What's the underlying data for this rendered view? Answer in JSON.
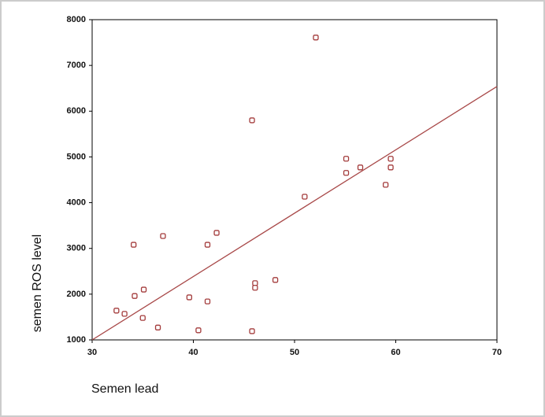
{
  "chart_data": {
    "type": "scatter",
    "xlabel": "Semen lead",
    "ylabel": "semen ROS level",
    "x": [
      32.4,
      33.2,
      34.2,
      35.1,
      35.0,
      36.5,
      34.1,
      37.0,
      39.6,
      40.5,
      41.4,
      41.4,
      42.3,
      45.8,
      45.8,
      46.1,
      46.1,
      48.1,
      51.0,
      52.1,
      55.1,
      55.1,
      56.5,
      59.0,
      59.5,
      59.5
    ],
    "y": [
      1640,
      1570,
      1960,
      2100,
      1480,
      1270,
      3080,
      3270,
      1930,
      1210,
      1840,
      3080,
      3340,
      5800,
      1190,
      2240,
      2140,
      2310,
      4130,
      7610,
      4960,
      4650,
      4770,
      4390,
      4960,
      4770
    ],
    "color": "#a33b3b",
    "fit": {
      "x": [
        30,
        70
      ],
      "y": [
        1000,
        6540
      ],
      "color": "#a84848"
    },
    "xlim": [
      30,
      70
    ],
    "ylim": [
      1000,
      8000
    ],
    "xticks": [
      30,
      40,
      50,
      60,
      70
    ],
    "yticks": [
      1000,
      2000,
      3000,
      4000,
      5000,
      6000,
      7000,
      8000
    ]
  }
}
